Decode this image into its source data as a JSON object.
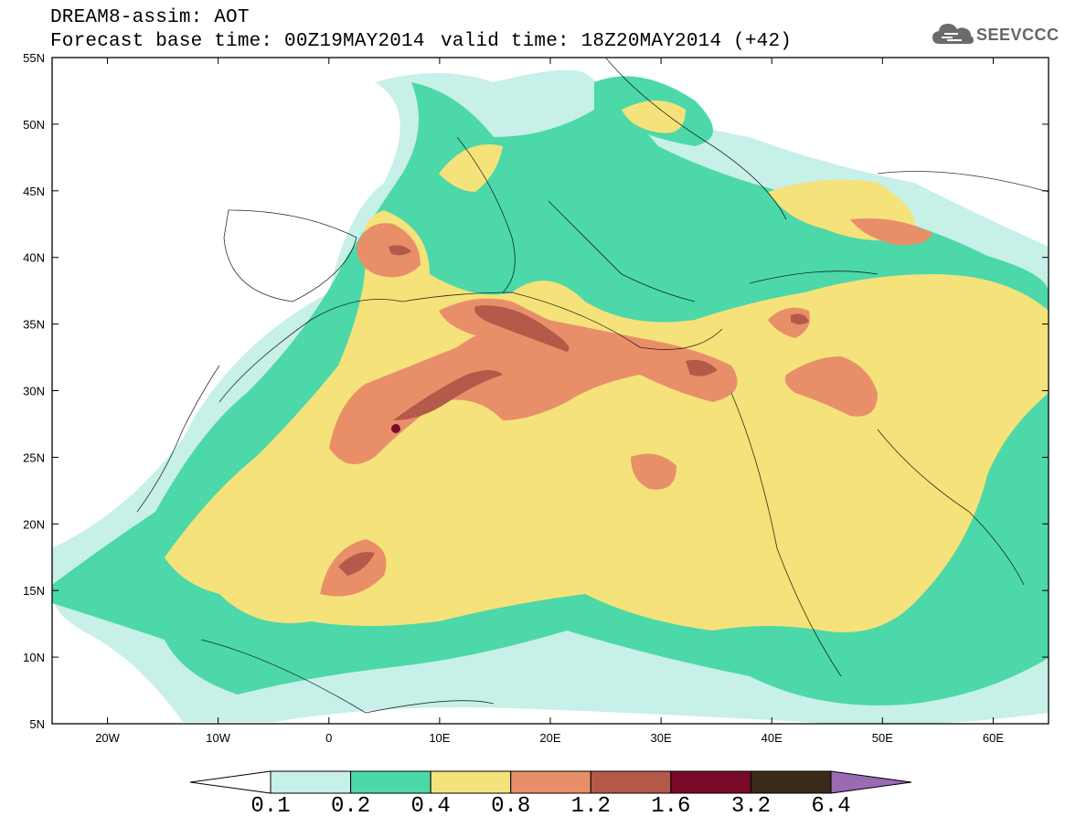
{
  "header": {
    "line1": "DREAM8-assim: AOT",
    "line2": "Forecast base time: 00Z19MAY2014",
    "line3": "valid time: 18Z20MAY2014 (+42)"
  },
  "logo": {
    "text": "SEEVCCC",
    "icon": "cloud-icon"
  },
  "map": {
    "lon_range": [
      -25,
      65
    ],
    "lat_range": [
      5,
      55
    ],
    "lat_ticks": [
      "55N",
      "50N",
      "45N",
      "40N",
      "35N",
      "30N",
      "25N",
      "20N",
      "15N",
      "10N",
      "5N"
    ],
    "lon_ticks": [
      "20W",
      "10W",
      "0",
      "10E",
      "20E",
      "30E",
      "40E",
      "50E",
      "60E"
    ],
    "field": "Aerosol Optical Thickness"
  },
  "colorbar": {
    "levels": [
      "0.1",
      "0.2",
      "0.4",
      "0.8",
      "1.2",
      "1.6",
      "3.2",
      "6.4"
    ],
    "colors": [
      "#ffffff",
      "#c6f0e8",
      "#4cd8a8",
      "#f5e27a",
      "#e88f6a",
      "#b35a4a",
      "#7a0a2a",
      "#3a2a1a",
      "#9a6ab4"
    ]
  }
}
